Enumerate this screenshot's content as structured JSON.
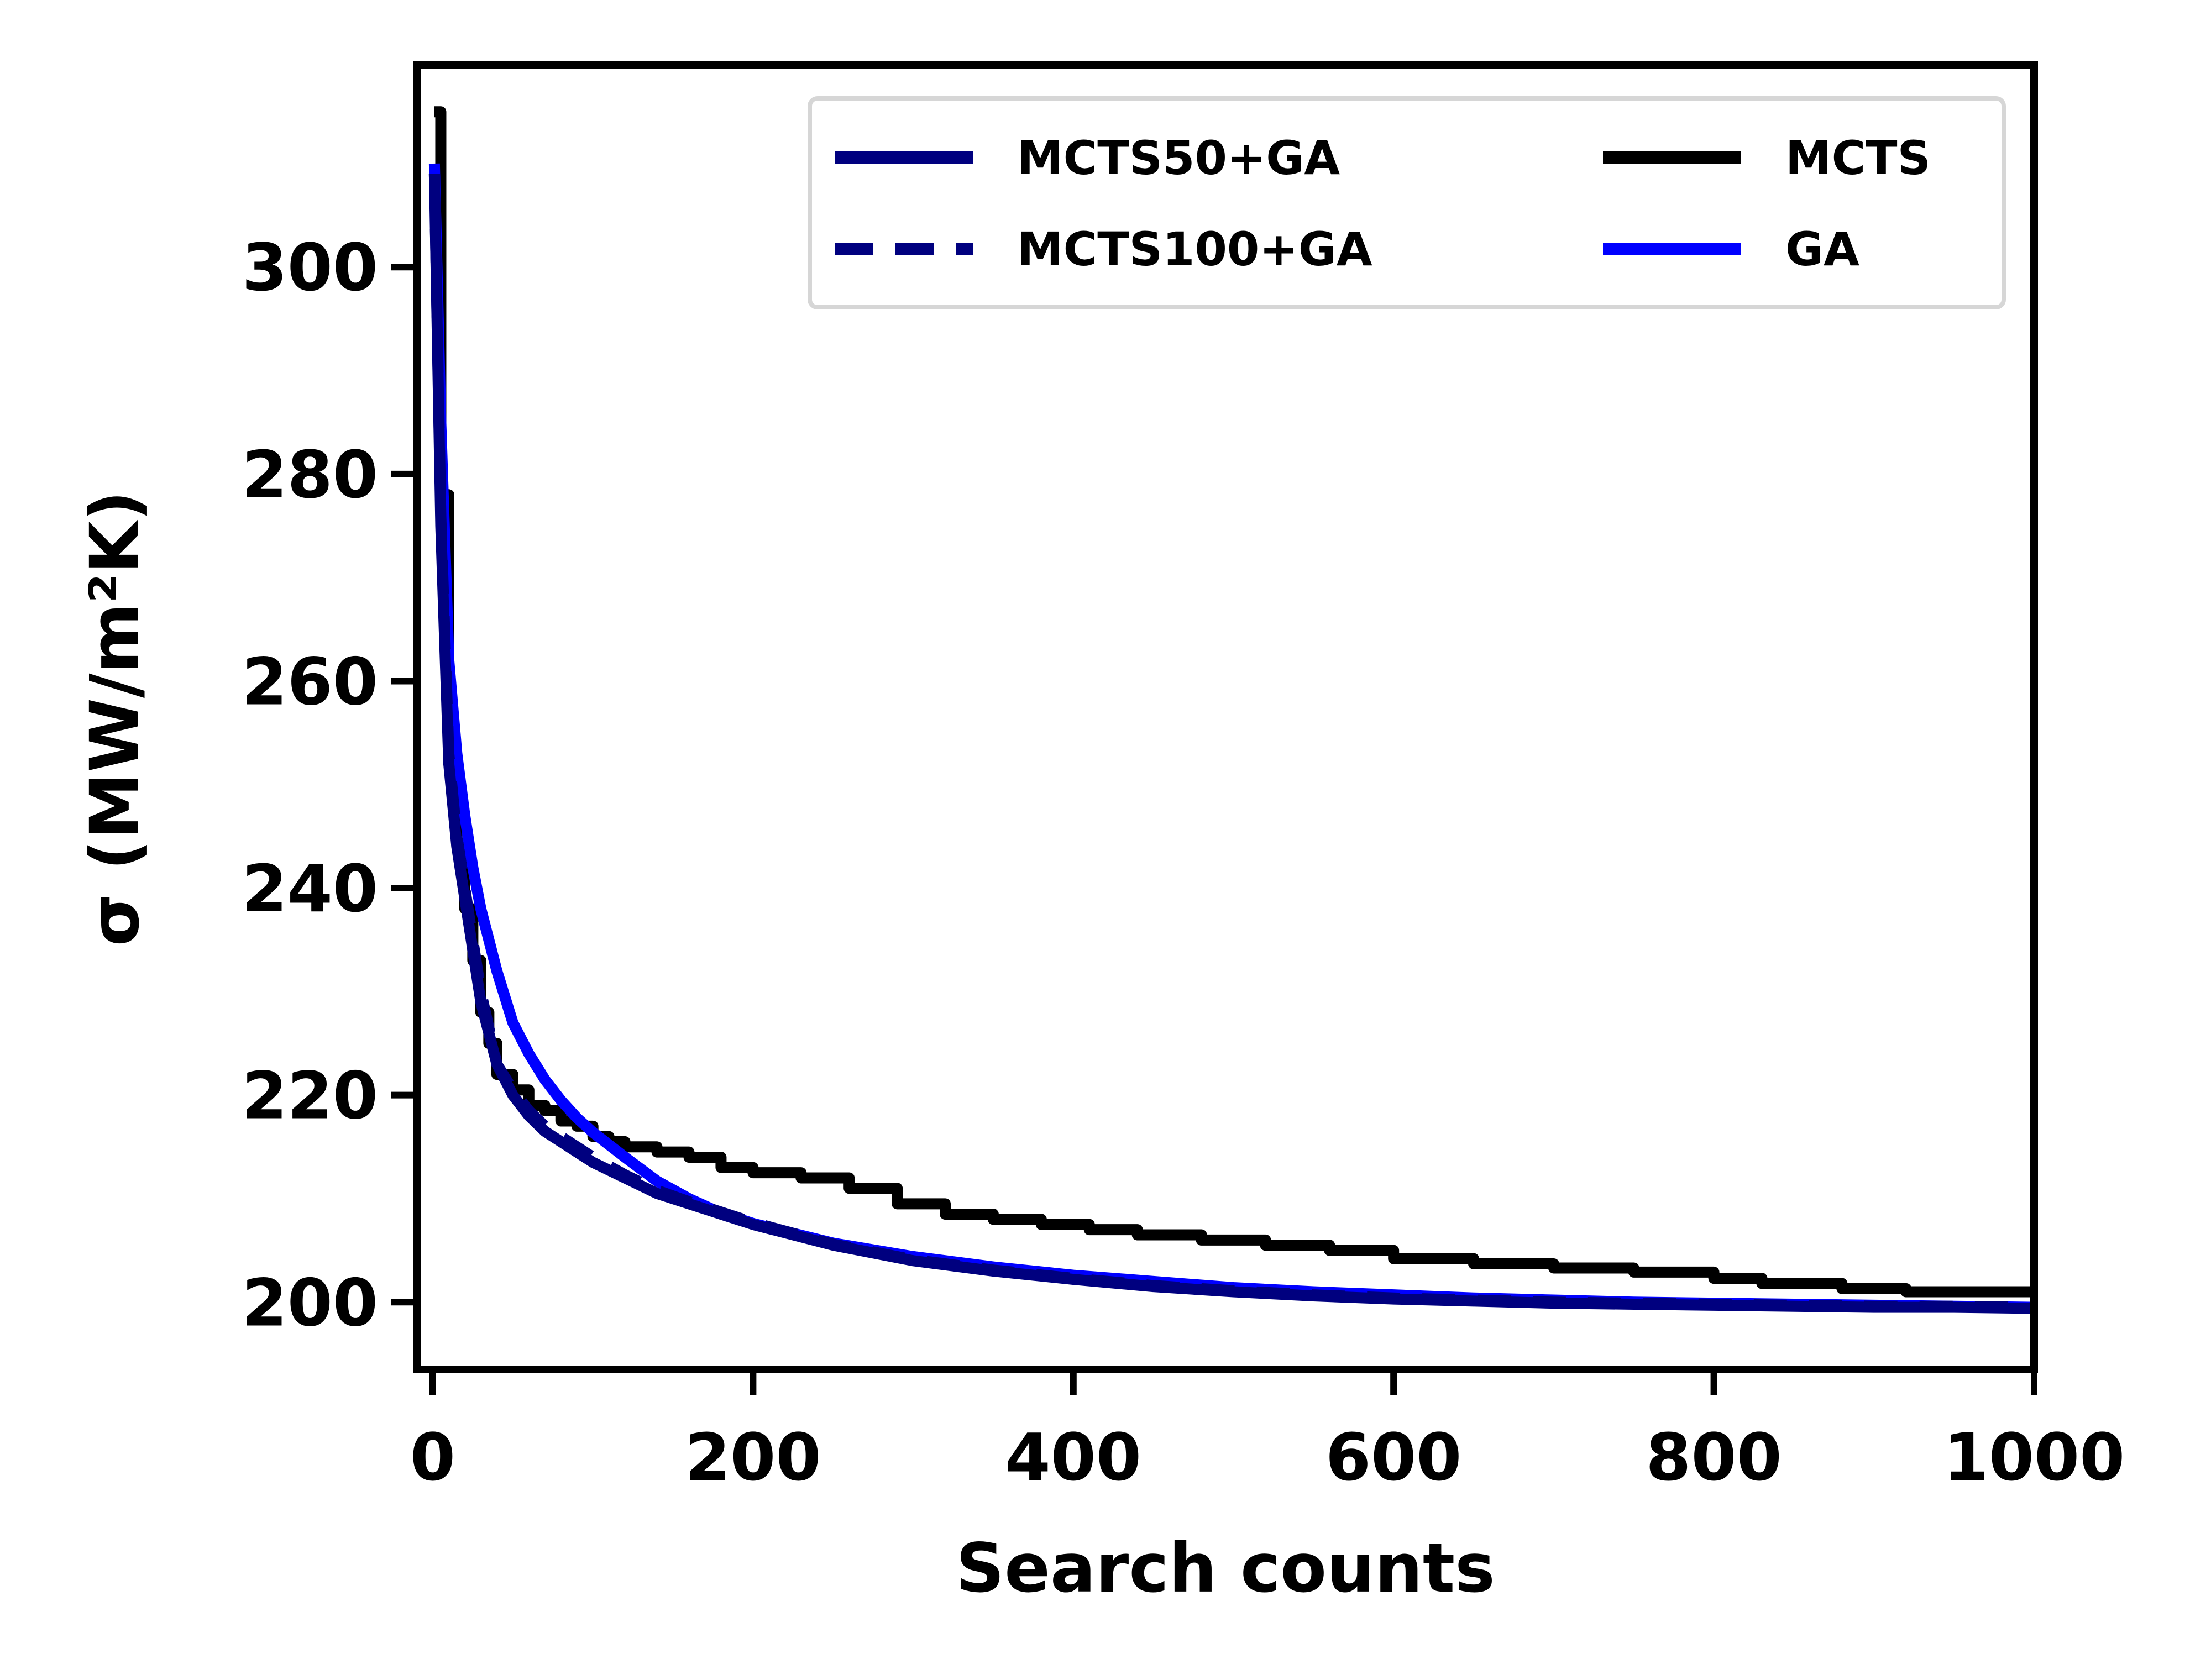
{
  "chart_data": {
    "type": "line",
    "title": "",
    "xlabel": "Search counts",
    "ylabel": "σ (MW/m²K)",
    "xlim": [
      -10,
      1000
    ],
    "ylim": [
      193.5,
      319.5
    ],
    "xticks": [
      0,
      200,
      400,
      600,
      800,
      1000
    ],
    "yticks": [
      200,
      220,
      240,
      260,
      280,
      300
    ],
    "legend": {
      "placement": "top-right",
      "columns": 2
    },
    "grid": false,
    "series": [
      {
        "name": "MCTS50+GA",
        "color": "#00007f",
        "style": "solid",
        "x": [
          1,
          5,
          10,
          15,
          20,
          25,
          30,
          35,
          40,
          50,
          60,
          70,
          80,
          90,
          100,
          120,
          140,
          160,
          180,
          200,
          250,
          300,
          350,
          400,
          450,
          500,
          550,
          600,
          650,
          700,
          750,
          800,
          850,
          900,
          950,
          1000
        ],
        "y": [
          309,
          275,
          252,
          244,
          239,
          234,
          229,
          226,
          223,
          220,
          218,
          216.5,
          215.5,
          214.5,
          213.5,
          212,
          210.5,
          209.5,
          208.5,
          207.5,
          205.5,
          204,
          203,
          202.2,
          201.5,
          201,
          200.6,
          200.3,
          200.1,
          199.9,
          199.8,
          199.7,
          199.6,
          199.5,
          199.5,
          199.4
        ]
      },
      {
        "name": "MCTS100+GA",
        "color": "#00007f",
        "style": "dashed",
        "x": [
          1,
          5,
          10,
          15,
          20,
          25,
          30,
          35,
          40,
          50,
          60,
          70,
          80,
          90,
          100,
          120,
          140,
          160,
          180,
          200,
          250,
          300,
          350,
          400,
          450,
          500,
          550,
          600,
          650,
          700,
          750,
          800,
          850,
          900,
          950,
          1000
        ],
        "y": [
          309,
          276,
          253,
          245,
          240,
          235,
          230,
          226.5,
          223,
          220.5,
          218.5,
          217,
          216,
          215,
          214,
          212.3,
          210.8,
          209.7,
          208.7,
          207.7,
          205.6,
          204.1,
          203.1,
          202.3,
          201.6,
          201.1,
          200.7,
          200.4,
          200.2,
          200,
          199.9,
          199.8,
          199.7,
          199.6,
          199.6,
          199.5
        ]
      },
      {
        "name": "MCTS",
        "color": "#000000",
        "style": "step",
        "x": [
          1,
          5,
          10,
          15,
          20,
          25,
          30,
          35,
          40,
          50,
          60,
          70,
          80,
          90,
          100,
          110,
          120,
          140,
          160,
          180,
          200,
          230,
          260,
          290,
          320,
          350,
          380,
          410,
          440,
          480,
          520,
          560,
          600,
          650,
          700,
          750,
          800,
          830,
          880,
          920,
          960,
          1000
        ],
        "y": [
          315,
          278,
          252,
          244,
          238,
          233,
          228,
          225,
          222,
          220.5,
          219,
          218.5,
          217.5,
          217,
          216,
          215.5,
          215,
          214.5,
          214,
          213,
          212.5,
          212,
          211,
          209.5,
          208.5,
          208,
          207.5,
          207,
          206.5,
          206,
          205.5,
          205,
          204.2,
          203.7,
          203.3,
          202.9,
          202.3,
          201.8,
          201.3,
          201,
          201,
          201
        ]
      },
      {
        "name": "GA",
        "color": "#0000ff",
        "style": "solid",
        "x": [
          1,
          5,
          10,
          15,
          20,
          25,
          30,
          40,
          50,
          60,
          70,
          80,
          90,
          100,
          120,
          140,
          160,
          180,
          200,
          250,
          300,
          350,
          400,
          450,
          500,
          550,
          600,
          650,
          700,
          750,
          800,
          850,
          900,
          950,
          1000
        ],
        "y": [
          310,
          285,
          262,
          253,
          247,
          242,
          238,
          232,
          227,
          224,
          221.5,
          219.5,
          217.8,
          216.4,
          214,
          211.7,
          210,
          208.6,
          207.6,
          205.7,
          204.4,
          203.4,
          202.6,
          202,
          201.4,
          201,
          200.7,
          200.4,
          200.2,
          200,
          199.9,
          199.8,
          199.7,
          199.6,
          199.5
        ]
      }
    ]
  }
}
